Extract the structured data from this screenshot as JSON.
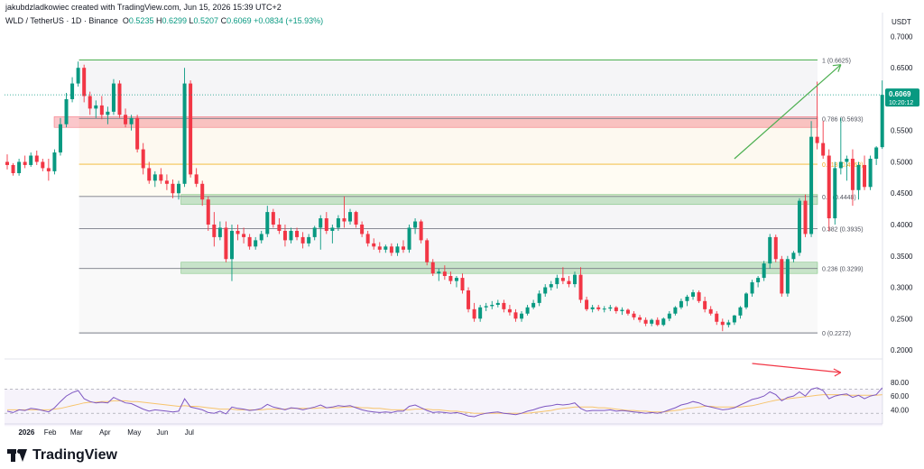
{
  "credit": "jakubdzladkowiec created with TradingView.com, Jun 15, 2026 15:39 UTC+2",
  "symbol": {
    "name": "WLD / TetherUS · 1D · Binance",
    "o_label": "O",
    "o": "0.5235",
    "h_label": "H",
    "h": "0.6299",
    "l_label": "L",
    "l": "0.5207",
    "c_label": "C",
    "c": "0.6069",
    "change": "+0.0834 (+15.93%)"
  },
  "footer": {
    "brand": "TradingView"
  },
  "colors": {
    "up": "#089981",
    "down": "#f23645",
    "fib_line": "#787b86",
    "rsi_line": "#7e57c2",
    "rsi_ma": "#f7c46c",
    "arrow_up": "#4caf50",
    "arrow_down": "#f23645"
  },
  "chart_data": {
    "type": "candlestick",
    "currency": "USDT",
    "y_ticks": [
      "0.7000",
      "0.6500",
      "0.6000",
      "0.5500",
      "0.5000",
      "0.4500",
      "0.4000",
      "0.3500",
      "0.3000",
      "0.2500",
      "0.2000"
    ],
    "ylim": [
      0.19,
      0.715
    ],
    "last_price": {
      "value": "0.6069",
      "countdown": "10:20:12"
    },
    "x_labels": [
      {
        "label": "2026",
        "date": "2026-01-01"
      },
      {
        "label": "Feb",
        "date": "2026-02-01"
      },
      {
        "label": "Mar",
        "date": "2026-03-01"
      },
      {
        "label": "Apr",
        "date": "2026-04-01"
      },
      {
        "label": "May",
        "date": "2026-05-01"
      },
      {
        "label": "Jun",
        "date": "2026-06-01"
      },
      {
        "label": "Jul",
        "date": "2026-07-01"
      }
    ],
    "first_date": "2025-12-20",
    "candles": [
      [
        0.5,
        0.512,
        0.488,
        0.495
      ],
      [
        0.495,
        0.498,
        0.478,
        0.482
      ],
      [
        0.482,
        0.505,
        0.478,
        0.5
      ],
      [
        0.5,
        0.51,
        0.49,
        0.495
      ],
      [
        0.495,
        0.515,
        0.492,
        0.51
      ],
      [
        0.51,
        0.518,
        0.495,
        0.5
      ],
      [
        0.5,
        0.505,
        0.485,
        0.49
      ],
      [
        0.49,
        0.505,
        0.47,
        0.485
      ],
      [
        0.485,
        0.52,
        0.48,
        0.515
      ],
      [
        0.515,
        0.57,
        0.51,
        0.56
      ],
      [
        0.56,
        0.61,
        0.555,
        0.6
      ],
      [
        0.6,
        0.635,
        0.595,
        0.625
      ],
      [
        0.625,
        0.66,
        0.62,
        0.65
      ],
      [
        0.65,
        0.655,
        0.595,
        0.605
      ],
      [
        0.605,
        0.612,
        0.575,
        0.585
      ],
      [
        0.585,
        0.598,
        0.57,
        0.59
      ],
      [
        0.59,
        0.605,
        0.568,
        0.575
      ],
      [
        0.575,
        0.588,
        0.56,
        0.58
      ],
      [
        0.58,
        0.632,
        0.575,
        0.625
      ],
      [
        0.625,
        0.63,
        0.57,
        0.575
      ],
      [
        0.575,
        0.585,
        0.555,
        0.56
      ],
      [
        0.56,
        0.575,
        0.55,
        0.57
      ],
      [
        0.57,
        0.575,
        0.515,
        0.52
      ],
      [
        0.52,
        0.53,
        0.48,
        0.49
      ],
      [
        0.49,
        0.5,
        0.465,
        0.47
      ],
      [
        0.47,
        0.485,
        0.46,
        0.48
      ],
      [
        0.48,
        0.49,
        0.465,
        0.47
      ],
      [
        0.47,
        0.48,
        0.455,
        0.465
      ],
      [
        0.465,
        0.472,
        0.442,
        0.45
      ],
      [
        0.45,
        0.47,
        0.44,
        0.465
      ],
      [
        0.465,
        0.65,
        0.46,
        0.625
      ],
      [
        0.625,
        0.63,
        0.475,
        0.48
      ],
      [
        0.48,
        0.49,
        0.46,
        0.465
      ],
      [
        0.465,
        0.47,
        0.43,
        0.44
      ],
      [
        0.44,
        0.445,
        0.39,
        0.4
      ],
      [
        0.4,
        0.42,
        0.365,
        0.38
      ],
      [
        0.38,
        0.405,
        0.375,
        0.395
      ],
      [
        0.395,
        0.405,
        0.34,
        0.345
      ],
      [
        0.345,
        0.4,
        0.31,
        0.39
      ],
      [
        0.39,
        0.4,
        0.375,
        0.385
      ],
      [
        0.385,
        0.395,
        0.37,
        0.38
      ],
      [
        0.38,
        0.385,
        0.36,
        0.365
      ],
      [
        0.365,
        0.38,
        0.36,
        0.375
      ],
      [
        0.375,
        0.39,
        0.37,
        0.385
      ],
      [
        0.385,
        0.43,
        0.38,
        0.42
      ],
      [
        0.42,
        0.425,
        0.395,
        0.4
      ],
      [
        0.4,
        0.41,
        0.385,
        0.39
      ],
      [
        0.39,
        0.4,
        0.365,
        0.375
      ],
      [
        0.375,
        0.395,
        0.37,
        0.39
      ],
      [
        0.39,
        0.395,
        0.375,
        0.38
      ],
      [
        0.38,
        0.388,
        0.362,
        0.37
      ],
      [
        0.37,
        0.385,
        0.365,
        0.38
      ],
      [
        0.38,
        0.398,
        0.375,
        0.395
      ],
      [
        0.395,
        0.415,
        0.36,
        0.41
      ],
      [
        0.41,
        0.42,
        0.385,
        0.39
      ],
      [
        0.39,
        0.4,
        0.37,
        0.395
      ],
      [
        0.395,
        0.415,
        0.39,
        0.41
      ],
      [
        0.41,
        0.445,
        0.395,
        0.405
      ],
      [
        0.405,
        0.425,
        0.4,
        0.42
      ],
      [
        0.42,
        0.422,
        0.395,
        0.4
      ],
      [
        0.4,
        0.405,
        0.38,
        0.385
      ],
      [
        0.385,
        0.39,
        0.365,
        0.37
      ],
      [
        0.37,
        0.378,
        0.36,
        0.365
      ],
      [
        0.365,
        0.372,
        0.355,
        0.36
      ],
      [
        0.36,
        0.368,
        0.355,
        0.365
      ],
      [
        0.365,
        0.37,
        0.35,
        0.355
      ],
      [
        0.355,
        0.37,
        0.35,
        0.365
      ],
      [
        0.365,
        0.375,
        0.355,
        0.36
      ],
      [
        0.36,
        0.4,
        0.355,
        0.395
      ],
      [
        0.395,
        0.41,
        0.385,
        0.405
      ],
      [
        0.405,
        0.408,
        0.37,
        0.375
      ],
      [
        0.375,
        0.378,
        0.335,
        0.34
      ],
      [
        0.34,
        0.345,
        0.318,
        0.322
      ],
      [
        0.322,
        0.33,
        0.31,
        0.325
      ],
      [
        0.325,
        0.335,
        0.312,
        0.318
      ],
      [
        0.318,
        0.325,
        0.305,
        0.31
      ],
      [
        0.31,
        0.318,
        0.3,
        0.315
      ],
      [
        0.315,
        0.322,
        0.29,
        0.295
      ],
      [
        0.295,
        0.3,
        0.26,
        0.265
      ],
      [
        0.265,
        0.275,
        0.245,
        0.25
      ],
      [
        0.25,
        0.272,
        0.245,
        0.268
      ],
      [
        0.268,
        0.275,
        0.262,
        0.27
      ],
      [
        0.27,
        0.278,
        0.265,
        0.272
      ],
      [
        0.272,
        0.28,
        0.268,
        0.275
      ],
      [
        0.275,
        0.28,
        0.26,
        0.265
      ],
      [
        0.265,
        0.272,
        0.255,
        0.26
      ],
      [
        0.26,
        0.265,
        0.245,
        0.25
      ],
      [
        0.25,
        0.262,
        0.245,
        0.258
      ],
      [
        0.258,
        0.272,
        0.255,
        0.268
      ],
      [
        0.268,
        0.28,
        0.265,
        0.275
      ],
      [
        0.275,
        0.295,
        0.27,
        0.29
      ],
      [
        0.29,
        0.305,
        0.285,
        0.3
      ],
      [
        0.3,
        0.31,
        0.295,
        0.305
      ],
      [
        0.305,
        0.32,
        0.298,
        0.315
      ],
      [
        0.315,
        0.332,
        0.305,
        0.31
      ],
      [
        0.31,
        0.318,
        0.3,
        0.305
      ],
      [
        0.305,
        0.325,
        0.3,
        0.32
      ],
      [
        0.32,
        0.332,
        0.275,
        0.28
      ],
      [
        0.28,
        0.285,
        0.262,
        0.265
      ],
      [
        0.265,
        0.272,
        0.26,
        0.268
      ],
      [
        0.268,
        0.272,
        0.262,
        0.265
      ],
      [
        0.265,
        0.27,
        0.26,
        0.266
      ],
      [
        0.266,
        0.272,
        0.262,
        0.268
      ],
      [
        0.268,
        0.27,
        0.258,
        0.262
      ],
      [
        0.262,
        0.268,
        0.256,
        0.264
      ],
      [
        0.264,
        0.266,
        0.255,
        0.258
      ],
      [
        0.258,
        0.262,
        0.248,
        0.252
      ],
      [
        0.252,
        0.256,
        0.244,
        0.248
      ],
      [
        0.248,
        0.252,
        0.238,
        0.242
      ],
      [
        0.242,
        0.25,
        0.238,
        0.248
      ],
      [
        0.248,
        0.252,
        0.238,
        0.24
      ],
      [
        0.24,
        0.252,
        0.238,
        0.25
      ],
      [
        0.25,
        0.262,
        0.246,
        0.258
      ],
      [
        0.258,
        0.27,
        0.255,
        0.268
      ],
      [
        0.268,
        0.282,
        0.265,
        0.278
      ],
      [
        0.278,
        0.288,
        0.27,
        0.285
      ],
      [
        0.285,
        0.296,
        0.28,
        0.292
      ],
      [
        0.292,
        0.295,
        0.275,
        0.278
      ],
      [
        0.278,
        0.285,
        0.26,
        0.265
      ],
      [
        0.265,
        0.27,
        0.255,
        0.258
      ],
      [
        0.258,
        0.262,
        0.24,
        0.245
      ],
      [
        0.245,
        0.25,
        0.23,
        0.24
      ],
      [
        0.24,
        0.248,
        0.236,
        0.244
      ],
      [
        0.244,
        0.256,
        0.24,
        0.255
      ],
      [
        0.255,
        0.27,
        0.25,
        0.268
      ],
      [
        0.268,
        0.292,
        0.265,
        0.29
      ],
      [
        0.29,
        0.312,
        0.285,
        0.308
      ],
      [
        0.308,
        0.318,
        0.3,
        0.315
      ],
      [
        0.315,
        0.342,
        0.31,
        0.338
      ],
      [
        0.338,
        0.385,
        0.33,
        0.38
      ],
      [
        0.38,
        0.384,
        0.34,
        0.345
      ],
      [
        0.345,
        0.35,
        0.285,
        0.29
      ],
      [
        0.29,
        0.35,
        0.285,
        0.345
      ],
      [
        0.345,
        0.358,
        0.34,
        0.355
      ],
      [
        0.355,
        0.442,
        0.35,
        0.438
      ],
      [
        0.438,
        0.448,
        0.38,
        0.385
      ],
      [
        0.385,
        0.565,
        0.38,
        0.54
      ],
      [
        0.54,
        0.628,
        0.52,
        0.53
      ],
      [
        0.53,
        0.565,
        0.505,
        0.51
      ],
      [
        0.51,
        0.52,
        0.39,
        0.41
      ],
      [
        0.41,
        0.5,
        0.4,
        0.49
      ],
      [
        0.49,
        0.57,
        0.48,
        0.5
      ],
      [
        0.5,
        0.51,
        0.47,
        0.505
      ],
      [
        0.505,
        0.52,
        0.43,
        0.455
      ],
      [
        0.455,
        0.5,
        0.44,
        0.495
      ],
      [
        0.495,
        0.51,
        0.455,
        0.46
      ],
      [
        0.46,
        0.51,
        0.455,
        0.505
      ],
      [
        0.505,
        0.525,
        0.495,
        0.523
      ],
      [
        0.5235,
        0.6299,
        0.5207,
        0.6069
      ]
    ],
    "fib_levels": [
      {
        "ratio": "1",
        "label": "1 (0.6625)",
        "value": 0.6625
      },
      {
        "ratio": "0.786",
        "label": "0.786 (0.5693)",
        "value": 0.5693
      },
      {
        "ratio": "0.618",
        "label": "0.618 (0.4963)",
        "value": 0.4963
      },
      {
        "ratio": "0.5",
        "label": "0.5 (0.4448)",
        "value": 0.4448
      },
      {
        "ratio": "0.382",
        "label": "0.382 (0.3935)",
        "value": 0.3935
      },
      {
        "ratio": "0.236",
        "label": "0.236 (0.3299)",
        "value": 0.3299
      },
      {
        "ratio": "0",
        "label": "0 (0.2272)",
        "value": 0.2272
      }
    ],
    "zones": [
      {
        "name": "resistance",
        "from": 0.555,
        "to": 0.572,
        "color": "#f23645"
      },
      {
        "name": "support-upper",
        "from": 0.432,
        "to": 0.448,
        "color": "#4caf50"
      },
      {
        "name": "support-lower",
        "from": 0.322,
        "to": 0.34,
        "color": "#4caf50"
      }
    ],
    "rsi": {
      "y_ticks": [
        "80.00",
        "60.00",
        "40.00"
      ],
      "ylim": [
        30,
        85
      ],
      "upper": 70,
      "lower": 30,
      "values": [
        38,
        36,
        40,
        39,
        42,
        41,
        39,
        37,
        43,
        52,
        60,
        65,
        68,
        56,
        52,
        50,
        51,
        50,
        58,
        54,
        50,
        49,
        45,
        41,
        38,
        40,
        39,
        38,
        37,
        38,
        56,
        44,
        42,
        40,
        36,
        35,
        38,
        34,
        44,
        42,
        41,
        39,
        40,
        42,
        48,
        44,
        42,
        40,
        43,
        42,
        40,
        42,
        44,
        47,
        43,
        44,
        46,
        45,
        46,
        43,
        40,
        38,
        37,
        36,
        37,
        36,
        38,
        38,
        45,
        47,
        43,
        39,
        36,
        37,
        36,
        35,
        36,
        34,
        31,
        30,
        33,
        35,
        36,
        37,
        35,
        34,
        33,
        35,
        38,
        40,
        43,
        45,
        46,
        48,
        47,
        48,
        50,
        42,
        38,
        39,
        39,
        39,
        40,
        38,
        39,
        38,
        37,
        36,
        35,
        36,
        35,
        37,
        40,
        43,
        47,
        49,
        52,
        50,
        46,
        44,
        42,
        40,
        41,
        43,
        47,
        51,
        55,
        57,
        60,
        66,
        62,
        53,
        58,
        60,
        66,
        60,
        70,
        72,
        68,
        56,
        60,
        62,
        63,
        58,
        61,
        56,
        60,
        62,
        72
      ],
      "ma": [
        40,
        40,
        40,
        40,
        40,
        40,
        40,
        40,
        41,
        42,
        44,
        46,
        48,
        50,
        51,
        51,
        52,
        52,
        53,
        53,
        53,
        52,
        52,
        51,
        50,
        49,
        48,
        47,
        46,
        45,
        46,
        45,
        45,
        44,
        43,
        42,
        41,
        41,
        41,
        40,
        40,
        40,
        40,
        40,
        41,
        41,
        41,
        41,
        42,
        42,
        42,
        42,
        42,
        43,
        43,
        43,
        43,
        44,
        44,
        44,
        43,
        43,
        42,
        42,
        41,
        40,
        40,
        40,
        40,
        41,
        41,
        41,
        40,
        40,
        39,
        38,
        38,
        37,
        36,
        35,
        35,
        35,
        35,
        35,
        35,
        35,
        35,
        35,
        35,
        36,
        37,
        38,
        39,
        41,
        42,
        43,
        44,
        44,
        44,
        44,
        43,
        43,
        42,
        41,
        40,
        39,
        39,
        38,
        38,
        37,
        37,
        37,
        38,
        39,
        40,
        42,
        43,
        44,
        45,
        45,
        44,
        44,
        44,
        44,
        44,
        45,
        46,
        48,
        50,
        52,
        54,
        55,
        56,
        57,
        58,
        59,
        60,
        61,
        62,
        62,
        62,
        62,
        61,
        61,
        61,
        61,
        61,
        61,
        62
      ]
    }
  }
}
